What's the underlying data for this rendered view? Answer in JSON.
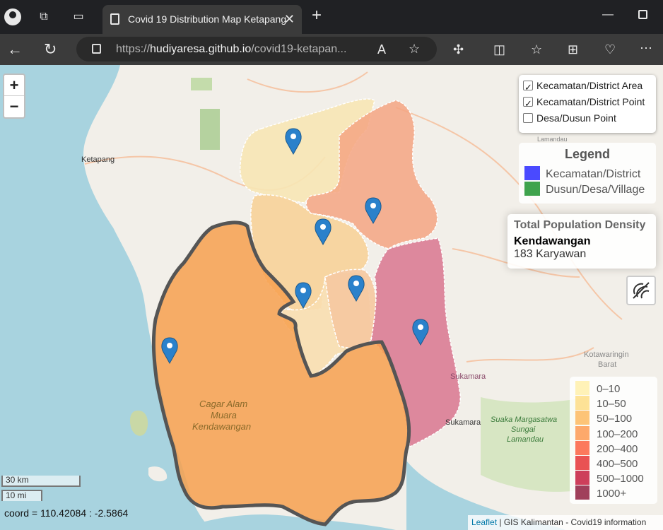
{
  "browser": {
    "tab_title": "Covid 19 Distribution Map Ketapang",
    "url_prefix": "https://",
    "url_host": "hudiyaresa.github.io",
    "url_path": "/covid19-ketapan...",
    "new_tab_glyph": "+",
    "close_tab_glyph": "✕"
  },
  "map": {
    "zoom_in": "+",
    "zoom_out": "−",
    "layers": [
      {
        "label": "Kecamatan/District Area",
        "checked": true
      },
      {
        "label": "Kecamatan/District Point",
        "checked": true
      },
      {
        "label": "Desa/Dusun Point",
        "checked": false
      }
    ],
    "legend": {
      "title": "Legend",
      "items": [
        {
          "label": "Kecamatan/District",
          "color": "#4a4aff"
        },
        {
          "label": "Dusun/Desa/Village",
          "color": "#3fa34d"
        }
      ]
    },
    "info": {
      "title": "Total Population Density",
      "name": "Kendawangan",
      "value": "183 Karyawan"
    },
    "density_legend": [
      {
        "label": "0–10",
        "color": "#ffeda0"
      },
      {
        "label": "10–50",
        "color": "#fed976"
      },
      {
        "label": "50–100",
        "color": "#feb24c"
      },
      {
        "label": "100–200",
        "color": "#fd8d3c"
      },
      {
        "label": "200–400",
        "color": "#fc4e2a"
      },
      {
        "label": "400–500",
        "color": "#e31a1c"
      },
      {
        "label": "500–1000",
        "color": "#bd0026"
      },
      {
        "label": "1000+",
        "color": "#800026"
      }
    ],
    "scale_km": "30 km",
    "scale_mi": "10 mi",
    "coord": "coord = 110.42084 : -2.5864",
    "attribution_link": "Leaflet",
    "attribution_text": " | GIS Kalimantan - Covid19 information",
    "labels": {
      "ketapang": "Ketapang",
      "cagar": "Cagar Alam",
      "muara": "Muara",
      "kendawangan": "Kendawangan",
      "sukamara1": "Sukamara",
      "sukamara2": "Sukamara",
      "suaka1": "Suaka Margasatwa",
      "suaka2": "Sungai",
      "suaka3": "Lamandau",
      "kotawaringin": "Kotawaringin",
      "barat": "Barat",
      "lamandau": "Lamandau"
    }
  }
}
